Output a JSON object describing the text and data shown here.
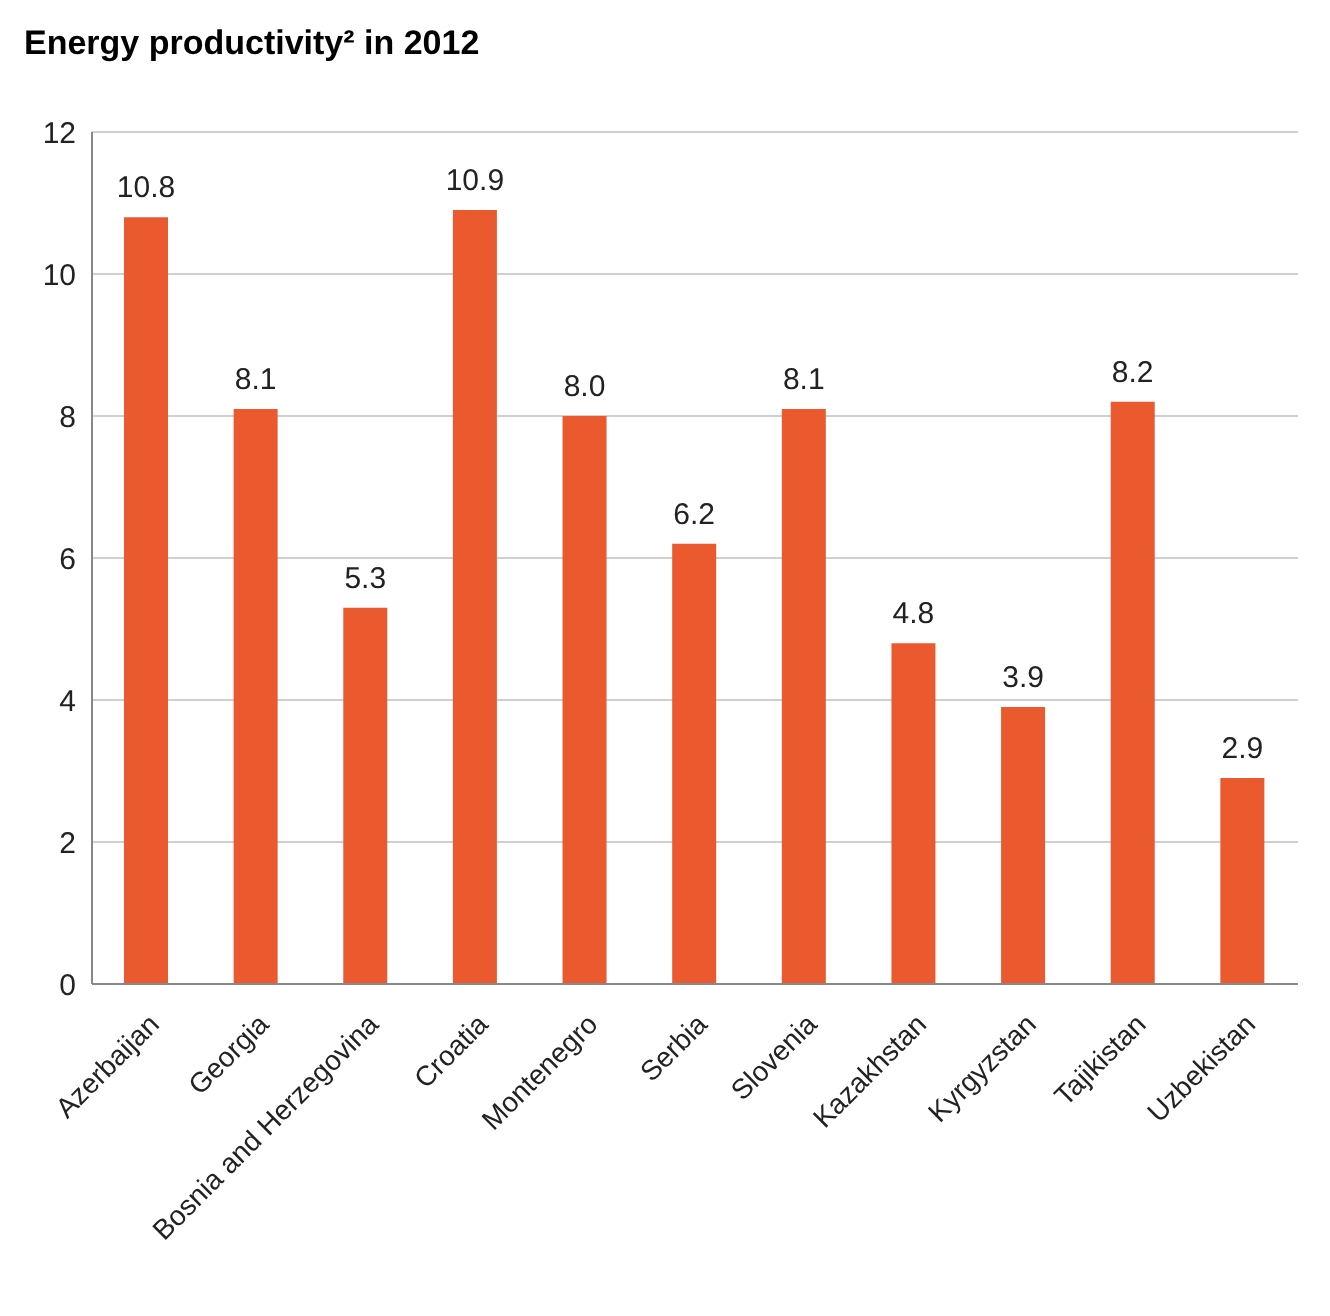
{
  "chart_data": {
    "type": "bar",
    "title": "Energy productivity² in 2012",
    "categories": [
      "Azerbaijan",
      "Georgia",
      "Bosnia and Herzegovina",
      "Croatia",
      "Montenegro",
      "Serbia",
      "Slovenia",
      "Kazakhstan",
      "Kyrgyzstan",
      "Tajikistan",
      "Uzbekistan"
    ],
    "values": [
      10.8,
      8.1,
      5.3,
      10.9,
      8.0,
      6.2,
      8.1,
      4.8,
      3.9,
      8.2,
      2.9
    ],
    "value_labels": [
      "10.8",
      "8.1",
      "5.3",
      "10.9",
      "8.0",
      "6.2",
      "8.1",
      "4.8",
      "3.9",
      "8.2",
      "2.9"
    ],
    "color": "#eb5a2f",
    "ylim": [
      0,
      12
    ],
    "yticks": [
      0,
      2,
      4,
      6,
      8,
      10,
      12
    ],
    "grid": "y"
  }
}
